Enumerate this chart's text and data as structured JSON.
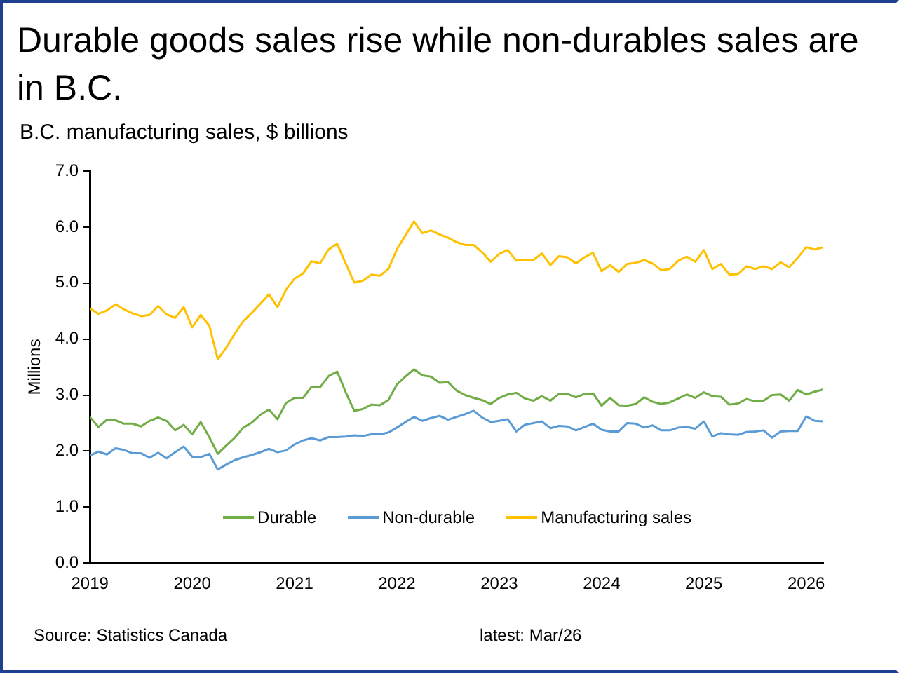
{
  "chart_data": {
    "type": "line",
    "title": "Durable goods sales rise while non-durables sales are in B.C.",
    "subtitle": "B.C. manufacturing sales, $ billions",
    "ylabel": "Millions",
    "x": [
      "2019-01",
      "2019-02",
      "2019-03",
      "2019-04",
      "2019-05",
      "2019-06",
      "2019-07",
      "2019-08",
      "2019-09",
      "2019-10",
      "2019-11",
      "2019-12",
      "2020-01",
      "2020-02",
      "2020-03",
      "2020-04",
      "2020-05",
      "2020-06",
      "2020-07",
      "2020-08",
      "2020-09",
      "2020-10",
      "2020-11",
      "2020-12",
      "2021-01",
      "2021-02",
      "2021-03",
      "2021-04",
      "2021-05",
      "2021-06",
      "2021-07",
      "2021-08",
      "2021-09",
      "2021-10",
      "2021-11",
      "2021-12",
      "2022-01",
      "2022-02",
      "2022-03",
      "2022-04",
      "2022-05",
      "2022-06",
      "2022-07",
      "2022-08",
      "2022-09",
      "2022-10",
      "2022-11",
      "2022-12",
      "2023-01",
      "2023-02",
      "2023-03",
      "2023-04",
      "2023-05",
      "2023-06",
      "2023-07",
      "2023-08",
      "2023-09",
      "2023-10",
      "2023-11",
      "2023-12",
      "2024-01",
      "2024-02",
      "2024-03",
      "2024-04",
      "2024-05",
      "2024-06",
      "2024-07",
      "2024-08",
      "2024-09",
      "2024-10",
      "2024-11",
      "2024-12",
      "2025-01",
      "2025-02",
      "2025-03",
      "2025-04",
      "2025-05",
      "2025-06",
      "2025-07",
      "2025-08",
      "2025-09",
      "2025-10",
      "2025-11",
      "2025-12",
      "2026-01",
      "2026-02",
      "2026-03"
    ],
    "series": [
      {
        "name": "Durable",
        "color": "#70ad47",
        "values": [
          2.61,
          2.43,
          2.56,
          2.55,
          2.49,
          2.49,
          2.44,
          2.54,
          2.6,
          2.54,
          2.37,
          2.47,
          2.3,
          2.52,
          2.25,
          1.95,
          2.1,
          2.24,
          2.42,
          2.51,
          2.65,
          2.74,
          2.57,
          2.86,
          2.95,
          2.95,
          3.15,
          3.14,
          3.34,
          3.42,
          3.05,
          2.72,
          2.75,
          2.83,
          2.82,
          2.91,
          3.19,
          3.33,
          3.46,
          3.35,
          3.33,
          3.22,
          3.23,
          3.08,
          3.0,
          2.95,
          2.91,
          2.84,
          2.95,
          3.01,
          3.04,
          2.94,
          2.9,
          2.98,
          2.9,
          3.02,
          3.02,
          2.96,
          3.02,
          3.03,
          2.81,
          2.95,
          2.82,
          2.81,
          2.84,
          2.96,
          2.88,
          2.84,
          2.87,
          2.94,
          3.01,
          2.95,
          3.05,
          2.98,
          2.97,
          2.83,
          2.85,
          2.93,
          2.89,
          2.9,
          3.0,
          3.01,
          2.9,
          3.09,
          3.01,
          3.06,
          3.1
        ]
      },
      {
        "name": "Non-durable",
        "color": "#5b9bd5",
        "values": [
          1.92,
          1.99,
          1.94,
          2.05,
          2.02,
          1.96,
          1.96,
          1.88,
          1.97,
          1.87,
          1.98,
          2.08,
          1.9,
          1.89,
          1.95,
          1.67,
          1.76,
          1.84,
          1.89,
          1.93,
          1.98,
          2.04,
          1.98,
          2.01,
          2.12,
          2.19,
          2.23,
          2.19,
          2.25,
          2.25,
          2.26,
          2.28,
          2.27,
          2.3,
          2.3,
          2.33,
          2.42,
          2.52,
          2.61,
          2.54,
          2.59,
          2.63,
          2.56,
          2.61,
          2.66,
          2.72,
          2.6,
          2.52,
          2.54,
          2.57,
          2.35,
          2.47,
          2.5,
          2.53,
          2.41,
          2.45,
          2.44,
          2.37,
          2.43,
          2.49,
          2.38,
          2.35,
          2.35,
          2.5,
          2.49,
          2.42,
          2.46,
          2.37,
          2.37,
          2.42,
          2.43,
          2.4,
          2.53,
          2.26,
          2.32,
          2.3,
          2.29,
          2.34,
          2.35,
          2.37,
          2.24,
          2.35,
          2.36,
          2.36,
          2.62,
          2.54,
          2.53
        ]
      },
      {
        "name": "Manufacturing sales",
        "color": "#ffc000",
        "values": [
          4.55,
          4.45,
          4.51,
          4.62,
          4.53,
          4.46,
          4.41,
          4.43,
          4.59,
          4.44,
          4.38,
          4.57,
          4.21,
          4.43,
          4.24,
          3.64,
          3.85,
          4.1,
          4.32,
          4.47,
          4.63,
          4.8,
          4.57,
          4.88,
          5.08,
          5.17,
          5.39,
          5.35,
          5.6,
          5.7,
          5.35,
          5.01,
          5.04,
          5.15,
          5.13,
          5.25,
          5.6,
          5.85,
          6.1,
          5.89,
          5.94,
          5.87,
          5.81,
          5.73,
          5.68,
          5.68,
          5.55,
          5.38,
          5.52,
          5.59,
          5.4,
          5.42,
          5.41,
          5.53,
          5.32,
          5.48,
          5.46,
          5.35,
          5.46,
          5.54,
          5.21,
          5.32,
          5.2,
          5.34,
          5.36,
          5.41,
          5.35,
          5.23,
          5.25,
          5.4,
          5.47,
          5.38,
          5.59,
          5.25,
          5.34,
          5.15,
          5.16,
          5.3,
          5.25,
          5.3,
          5.25,
          5.37,
          5.28,
          5.45,
          5.64,
          5.6,
          5.64
        ]
      }
    ],
    "xlim": [
      "2019-01",
      "2026-03"
    ],
    "xticks": [
      "2019",
      "2020",
      "2021",
      "2022",
      "2023",
      "2024",
      "2025",
      "2026"
    ],
    "ylim": [
      0,
      7
    ],
    "yticks": [
      {
        "value": 0,
        "label": "0.0"
      },
      {
        "value": 1,
        "label": "1.0"
      },
      {
        "value": 2,
        "label": "2.0"
      },
      {
        "value": 3,
        "label": "3.0"
      },
      {
        "value": 4,
        "label": "4.0"
      },
      {
        "value": 5,
        "label": "5.0"
      },
      {
        "value": 6,
        "label": "6.0"
      },
      {
        "value": 7,
        "label": "7.0"
      }
    ],
    "grid": false,
    "legend": "bottom",
    "marker": "none",
    "line_style": "solid",
    "annotations": [
      "Source: Statistics Canada",
      "latest: Mar/26"
    ]
  }
}
